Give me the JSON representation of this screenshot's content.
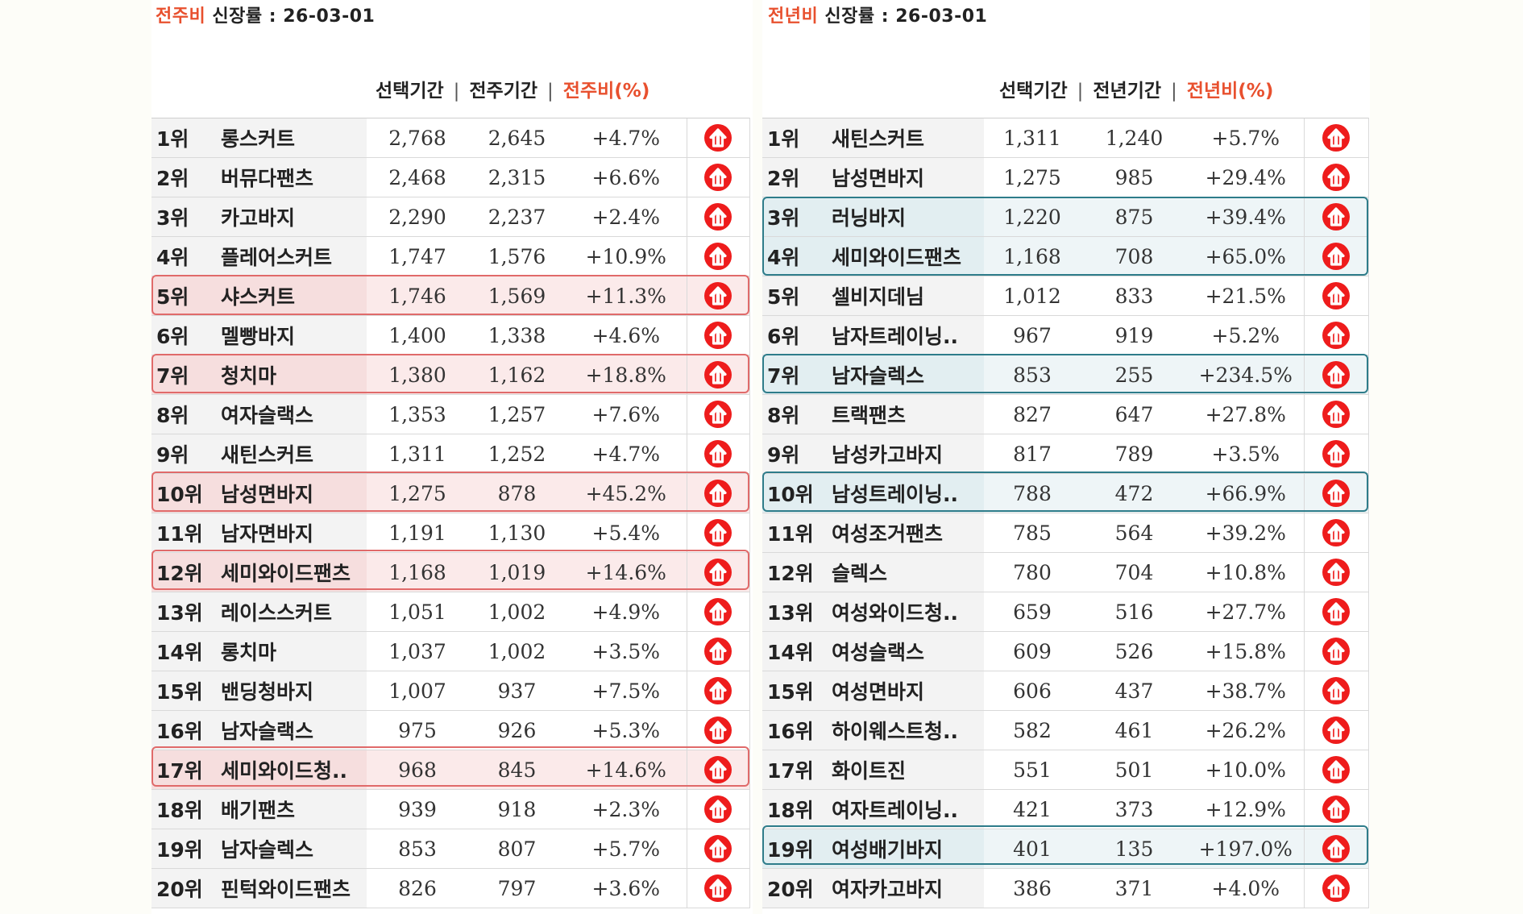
{
  "panels": [
    {
      "id": "weekly",
      "title_accent": "전주비",
      "title_rest": " 신장률  : 26-03-01",
      "headers": {
        "selected": "선택기간",
        "compare": "전주기간",
        "ratio": "전주비(%)",
        "sep": "|"
      },
      "rows": [
        {
          "rank": "1위",
          "name": "롱스커트",
          "selected": "2,768",
          "compare": "2,645",
          "ratio": "+4.7%",
          "icon": "arrow-up-circle-icon",
          "highlight": false
        },
        {
          "rank": "2위",
          "name": "버뮤다팬츠",
          "selected": "2,468",
          "compare": "2,315",
          "ratio": "+6.6%",
          "icon": "arrow-up-circle-icon",
          "highlight": false
        },
        {
          "rank": "3위",
          "name": "카고바지",
          "selected": "2,290",
          "compare": "2,237",
          "ratio": "+2.4%",
          "icon": "arrow-up-circle-icon",
          "highlight": false
        },
        {
          "rank": "4위",
          "name": "플레어스커트",
          "selected": "1,747",
          "compare": "1,576",
          "ratio": "+10.9%",
          "icon": "arrow-up-circle-icon",
          "highlight": false
        },
        {
          "rank": "5위",
          "name": "샤스커트",
          "selected": "1,746",
          "compare": "1,569",
          "ratio": "+11.3%",
          "icon": "arrow-up-circle-icon",
          "highlight": true
        },
        {
          "rank": "6위",
          "name": "멜빵바지",
          "selected": "1,400",
          "compare": "1,338",
          "ratio": "+4.6%",
          "icon": "arrow-up-circle-icon",
          "highlight": false
        },
        {
          "rank": "7위",
          "name": "청치마",
          "selected": "1,380",
          "compare": "1,162",
          "ratio": "+18.8%",
          "icon": "arrow-up-circle-icon",
          "highlight": true
        },
        {
          "rank": "8위",
          "name": "여자슬랙스",
          "selected": "1,353",
          "compare": "1,257",
          "ratio": "+7.6%",
          "icon": "arrow-up-circle-icon",
          "highlight": false
        },
        {
          "rank": "9위",
          "name": "새틴스커트",
          "selected": "1,311",
          "compare": "1,252",
          "ratio": "+4.7%",
          "icon": "arrow-up-circle-icon",
          "highlight": false
        },
        {
          "rank": "10위",
          "name": "남성면바지",
          "selected": "1,275",
          "compare": "878",
          "ratio": "+45.2%",
          "icon": "arrow-up-circle-icon",
          "highlight": true
        },
        {
          "rank": "11위",
          "name": "남자면바지",
          "selected": "1,191",
          "compare": "1,130",
          "ratio": "+5.4%",
          "icon": "arrow-up-circle-icon",
          "highlight": false
        },
        {
          "rank": "12위",
          "name": "세미와이드팬츠",
          "selected": "1,168",
          "compare": "1,019",
          "ratio": "+14.6%",
          "icon": "arrow-up-circle-icon",
          "highlight": true
        },
        {
          "rank": "13위",
          "name": "레이스스커트",
          "selected": "1,051",
          "compare": "1,002",
          "ratio": "+4.9%",
          "icon": "arrow-up-circle-icon",
          "highlight": false
        },
        {
          "rank": "14위",
          "name": "롱치마",
          "selected": "1,037",
          "compare": "1,002",
          "ratio": "+3.5%",
          "icon": "arrow-up-circle-icon",
          "highlight": false
        },
        {
          "rank": "15위",
          "name": "밴딩청바지",
          "selected": "1,007",
          "compare": "937",
          "ratio": "+7.5%",
          "icon": "arrow-up-circle-icon",
          "highlight": false
        },
        {
          "rank": "16위",
          "name": "남자슬랙스",
          "selected": "975",
          "compare": "926",
          "ratio": "+5.3%",
          "icon": "arrow-up-circle-icon",
          "highlight": false
        },
        {
          "rank": "17위",
          "name": "세미와이드청..",
          "selected": "968",
          "compare": "845",
          "ratio": "+14.6%",
          "icon": "arrow-up-circle-icon",
          "highlight": true
        },
        {
          "rank": "18위",
          "name": "배기팬츠",
          "selected": "939",
          "compare": "918",
          "ratio": "+2.3%",
          "icon": "arrow-up-circle-icon",
          "highlight": false
        },
        {
          "rank": "19위",
          "name": "남자슬렉스",
          "selected": "853",
          "compare": "807",
          "ratio": "+5.7%",
          "icon": "arrow-up-circle-icon",
          "highlight": false
        },
        {
          "rank": "20위",
          "name": "핀턱와이드팬츠",
          "selected": "826",
          "compare": "797",
          "ratio": "+3.6%",
          "icon": "arrow-up-circle-icon",
          "highlight": false
        }
      ]
    },
    {
      "id": "yearly",
      "title_accent": "전년비",
      "title_rest": " 신장률 : 26-03-01",
      "headers": {
        "selected": "선택기간",
        "compare": "전년기간",
        "ratio": "전년비(%)",
        "sep": "|"
      },
      "rows": [
        {
          "rank": "1위",
          "name": "새틴스커트",
          "selected": "1,311",
          "compare": "1,240",
          "ratio": "+5.7%",
          "icon": "arrow-up-circle-icon",
          "highlight": false
        },
        {
          "rank": "2위",
          "name": "남성면바지",
          "selected": "1,275",
          "compare": "985",
          "ratio": "+29.4%",
          "icon": "arrow-up-circle-icon",
          "highlight": false
        },
        {
          "rank": "3위",
          "name": "러닝바지",
          "selected": "1,220",
          "compare": "875",
          "ratio": "+39.4%",
          "icon": "arrow-up-circle-icon",
          "highlight": true
        },
        {
          "rank": "4위",
          "name": "세미와이드팬츠",
          "selected": "1,168",
          "compare": "708",
          "ratio": "+65.0%",
          "icon": "arrow-up-circle-icon",
          "highlight": true
        },
        {
          "rank": "5위",
          "name": "셀비지데님",
          "selected": "1,012",
          "compare": "833",
          "ratio": "+21.5%",
          "icon": "arrow-up-circle-icon",
          "highlight": false
        },
        {
          "rank": "6위",
          "name": "남자트레이닝..",
          "selected": "967",
          "compare": "919",
          "ratio": "+5.2%",
          "icon": "arrow-up-circle-icon",
          "highlight": false
        },
        {
          "rank": "7위",
          "name": "남자슬렉스",
          "selected": "853",
          "compare": "255",
          "ratio": "+234.5%",
          "icon": "arrow-up-circle-icon",
          "highlight": true
        },
        {
          "rank": "8위",
          "name": "트랙팬츠",
          "selected": "827",
          "compare": "647",
          "ratio": "+27.8%",
          "icon": "arrow-up-circle-icon",
          "highlight": false
        },
        {
          "rank": "9위",
          "name": "남성카고바지",
          "selected": "817",
          "compare": "789",
          "ratio": "+3.5%",
          "icon": "arrow-up-circle-icon",
          "highlight": false
        },
        {
          "rank": "10위",
          "name": "남성트레이닝..",
          "selected": "788",
          "compare": "472",
          "ratio": "+66.9%",
          "icon": "arrow-up-circle-icon",
          "highlight": true
        },
        {
          "rank": "11위",
          "name": "여성조거팬츠",
          "selected": "785",
          "compare": "564",
          "ratio": "+39.2%",
          "icon": "arrow-up-circle-icon",
          "highlight": false
        },
        {
          "rank": "12위",
          "name": "슬렉스",
          "selected": "780",
          "compare": "704",
          "ratio": "+10.8%",
          "icon": "arrow-up-circle-icon",
          "highlight": false
        },
        {
          "rank": "13위",
          "name": "여성와이드청..",
          "selected": "659",
          "compare": "516",
          "ratio": "+27.7%",
          "icon": "arrow-up-circle-icon",
          "highlight": false
        },
        {
          "rank": "14위",
          "name": "여성슬랙스",
          "selected": "609",
          "compare": "526",
          "ratio": "+15.8%",
          "icon": "arrow-up-circle-icon",
          "highlight": false
        },
        {
          "rank": "15위",
          "name": "여성면바지",
          "selected": "606",
          "compare": "437",
          "ratio": "+38.7%",
          "icon": "arrow-up-circle-icon",
          "highlight": false
        },
        {
          "rank": "16위",
          "name": "하이웨스트청..",
          "selected": "582",
          "compare": "461",
          "ratio": "+26.2%",
          "icon": "arrow-up-circle-icon",
          "highlight": false
        },
        {
          "rank": "17위",
          "name": "화이트진",
          "selected": "551",
          "compare": "501",
          "ratio": "+10.0%",
          "icon": "arrow-up-circle-icon",
          "highlight": false
        },
        {
          "rank": "18위",
          "name": "여자트레이닝..",
          "selected": "421",
          "compare": "373",
          "ratio": "+12.9%",
          "icon": "arrow-up-circle-icon",
          "highlight": false
        },
        {
          "rank": "19위",
          "name": "여성배기바지",
          "selected": "401",
          "compare": "135",
          "ratio": "+197.0%",
          "icon": "arrow-up-circle-icon",
          "highlight": true
        },
        {
          "rank": "20위",
          "name": "여자카고바지",
          "selected": "386",
          "compare": "371",
          "ratio": "+4.0%",
          "icon": "arrow-up-circle-icon",
          "highlight": false
        }
      ]
    }
  ],
  "colors": {
    "accent": "#e8502e",
    "icon_red": "#ee1c1c",
    "weekly_highlight_border": "#e06a6a",
    "yearly_highlight_border": "#2e7c8a"
  }
}
